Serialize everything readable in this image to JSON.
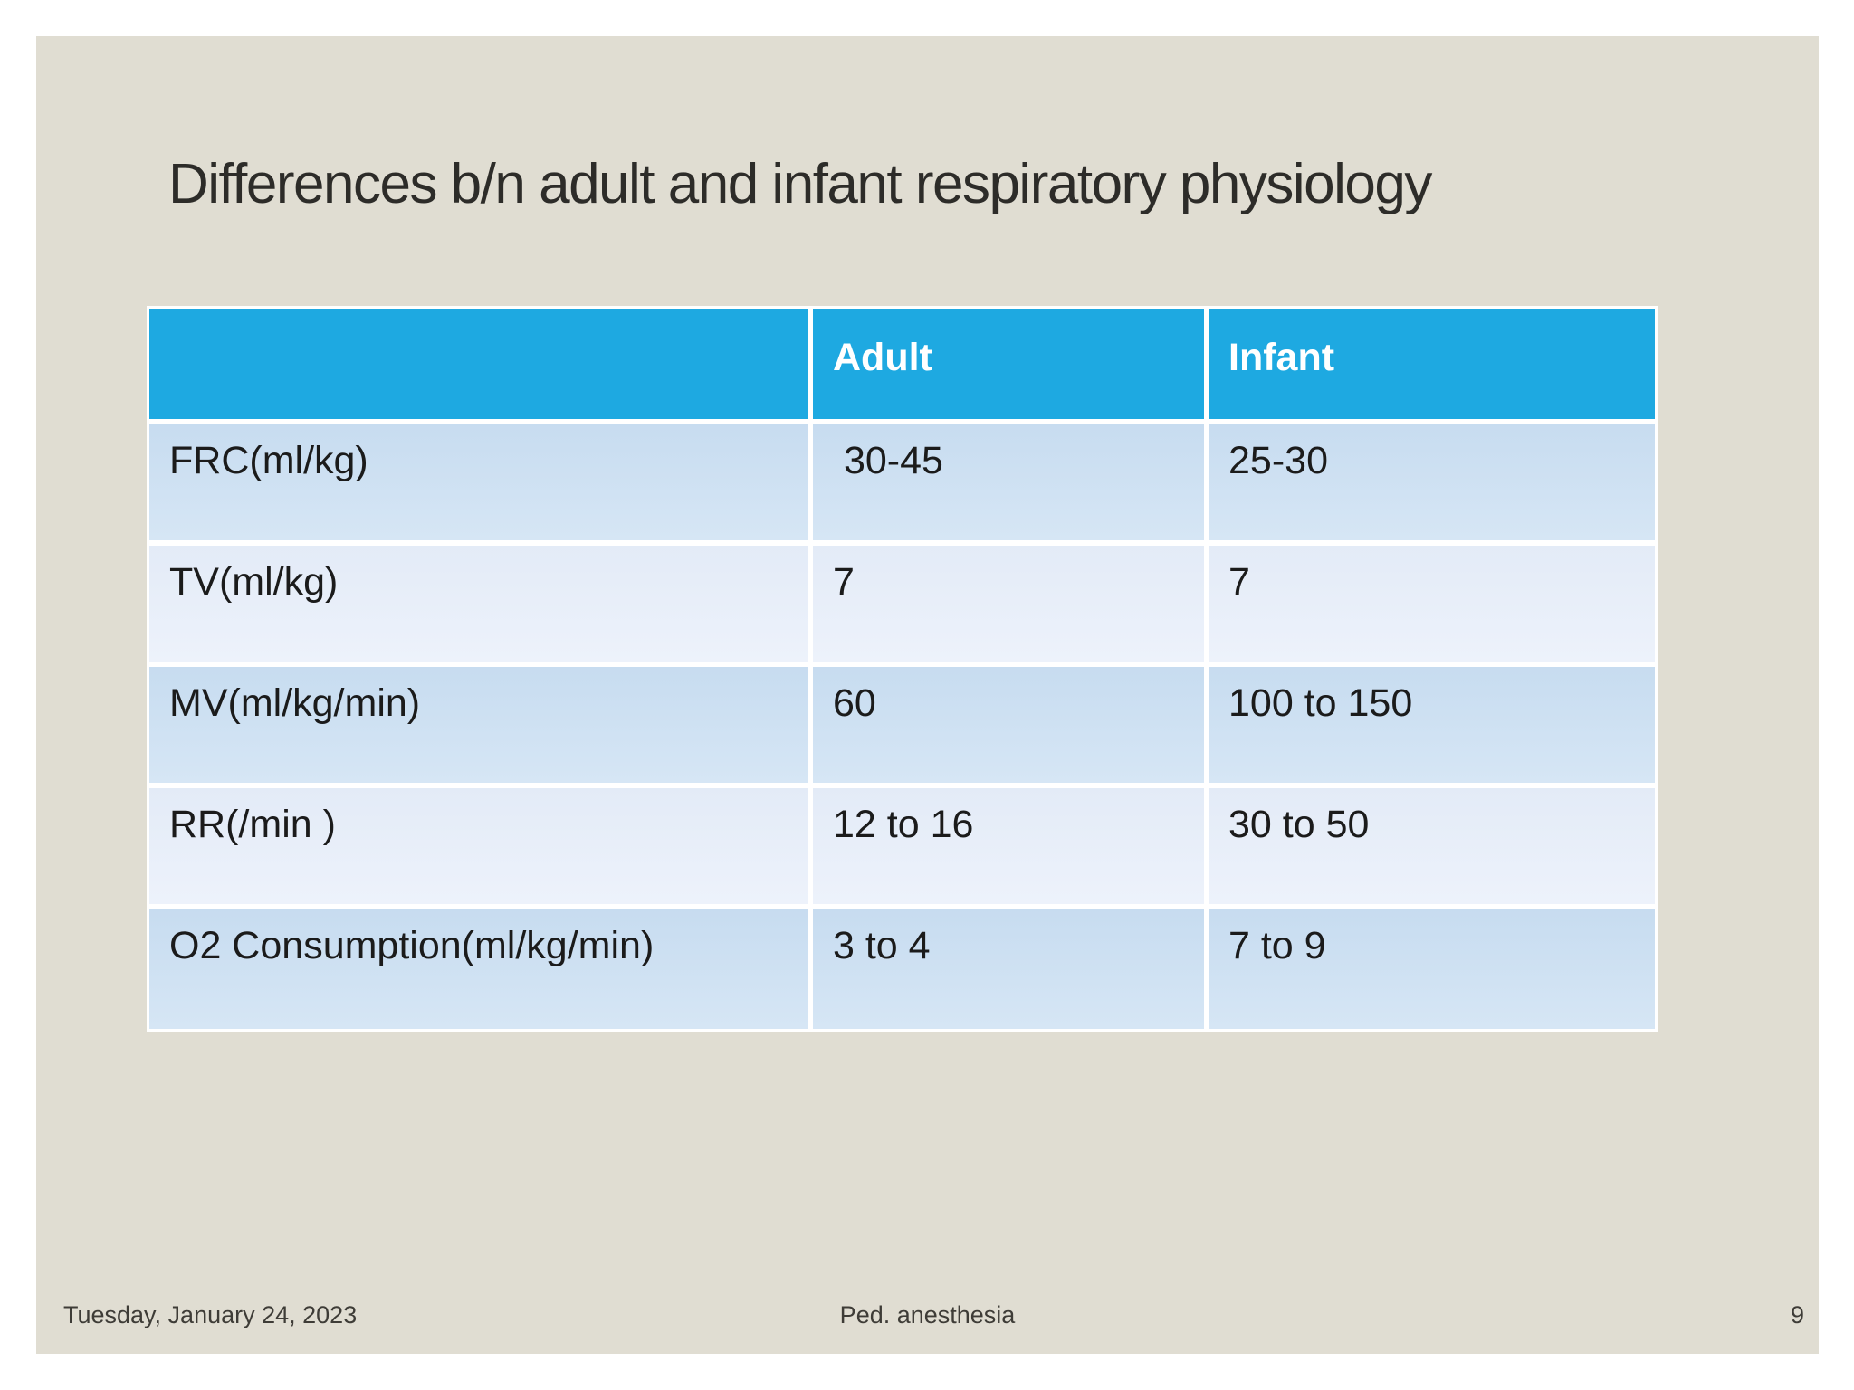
{
  "slide": {
    "title": "Differences b/n adult and infant respiratory physiology",
    "table": {
      "header": {
        "row_label": "",
        "adult": "Adult",
        "infant": "Infant"
      },
      "rows": [
        {
          "label": "FRC(ml/kg)",
          "adult": " 30-45",
          "infant": "25-30"
        },
        {
          "label": "TV(ml/kg)",
          "adult": "7",
          "infant": "7"
        },
        {
          "label": "MV(ml/kg/min)",
          "adult": "60",
          "infant": "100 to 150"
        },
        {
          "label": "RR(/min )",
          "adult": "12 to 16",
          "infant": "30 to 50"
        },
        {
          "label": "O2 Consumption(ml/kg/min)",
          "adult": "3 to 4",
          "infant": "7 to 9"
        }
      ]
    },
    "footer": {
      "date": "Tuesday, January 24, 2023",
      "center": "Ped. anesthesia",
      "page_number": "9"
    },
    "colors": {
      "canvas_bg": "#FFFFFF",
      "slide_bg": "#E0DDD2",
      "table_header_bg": "#1EA9E1",
      "table_header_text": "#FFFFFF",
      "row_odd_bg": "#CBDFF2",
      "row_even_bg": "#E7EEF9",
      "divider": "#FFFFFF",
      "title_text": "#2D2C29",
      "cell_text": "#1B1B1B",
      "footer_text": "#3E3C37"
    }
  },
  "chart_data": {
    "type": "table",
    "title": "Differences b/n adult and infant respiratory physiology",
    "columns": [
      "",
      "Adult",
      "Infant"
    ],
    "rows": [
      [
        "FRC(ml/kg)",
        "30-45",
        "25-30"
      ],
      [
        "TV(ml/kg)",
        "7",
        "7"
      ],
      [
        "MV(ml/kg/min)",
        "60",
        "100 to 150"
      ],
      [
        "RR(/min )",
        "12 to 16",
        "30 to 50"
      ],
      [
        "O2 Consumption(ml/kg/min)",
        "3 to 4",
        "7 to 9"
      ]
    ]
  }
}
